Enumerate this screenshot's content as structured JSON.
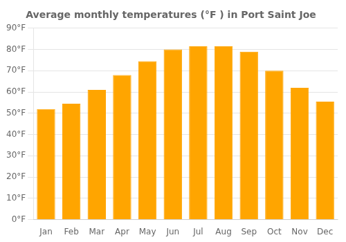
{
  "chart_data": {
    "type": "bar",
    "title": "Average monthly temperatures (°F ) in Port Saint Joe",
    "categories": [
      "Jan",
      "Feb",
      "Mar",
      "Apr",
      "May",
      "Jun",
      "Jul",
      "Aug",
      "Sep",
      "Oct",
      "Nov",
      "Dec"
    ],
    "values": [
      52,
      54.5,
      61,
      68,
      74.5,
      80,
      81.5,
      81.5,
      79,
      70,
      62,
      55.5
    ],
    "color": "#FFA500",
    "ylim": [
      0,
      90
    ],
    "yticks": [
      {
        "value": 0,
        "label": "0°F"
      },
      {
        "value": 10,
        "label": "10°F"
      },
      {
        "value": 20,
        "label": "20°F"
      },
      {
        "value": 30,
        "label": "30°F"
      },
      {
        "value": 40,
        "label": "40°F"
      },
      {
        "value": 50,
        "label": "50°F"
      },
      {
        "value": 60,
        "label": "60°F"
      },
      {
        "value": 70,
        "label": "70°F"
      },
      {
        "value": 80,
        "label": "80°F"
      },
      {
        "value": 90,
        "label": "90°F"
      }
    ],
    "grid": true
  }
}
